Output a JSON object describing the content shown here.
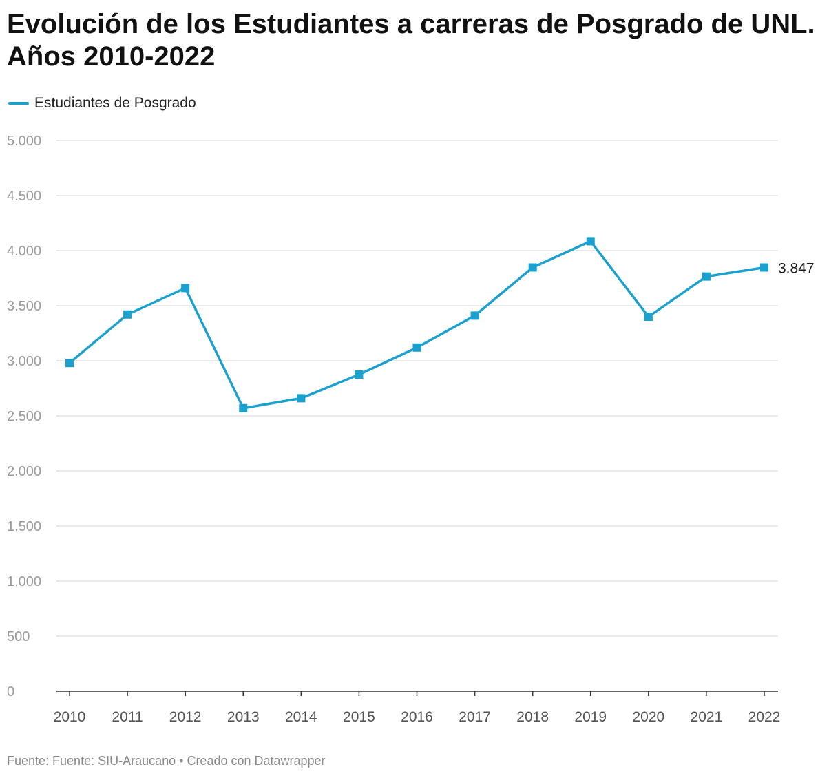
{
  "chart_data": {
    "type": "line",
    "title": "Evolución de los Estudiantes a carreras de Posgrado de UNL. Años 2010-2022",
    "x": [
      "2010",
      "2011",
      "2012",
      "2013",
      "2014",
      "2015",
      "2016",
      "2017",
      "2018",
      "2019",
      "2020",
      "2021",
      "2022"
    ],
    "series": [
      {
        "name": "Estudiantes de Posgrado",
        "color": "#1ba1cf",
        "values": [
          2980,
          3420,
          3660,
          2570,
          2660,
          2875,
          3120,
          3410,
          3847,
          4085,
          3400,
          3765,
          3847
        ]
      }
    ],
    "ylim": [
      0,
      5000
    ],
    "yticks": [
      0,
      500,
      1000,
      1500,
      2000,
      2500,
      3000,
      3500,
      4000,
      4500,
      5000
    ],
    "ytick_labels": [
      "0",
      "500",
      "1.000",
      "1.500",
      "2.000",
      "2.500",
      "3.000",
      "3.500",
      "4.000",
      "4.500",
      "5.000"
    ],
    "grid": true,
    "legend_position": "top-left",
    "end_label": "3.847"
  },
  "footer": {
    "text": "Fuente: Fuente: SIU-Araucano • Creado con Datawrapper"
  }
}
